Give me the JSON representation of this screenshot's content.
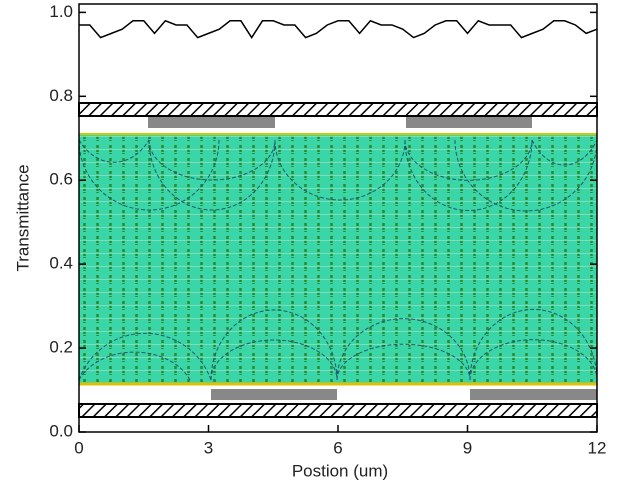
{
  "chart_data": {
    "type": "line",
    "x_label": "Postion (um)",
    "y_label": "Transmittance",
    "x": [
      0,
      0.25,
      0.5,
      0.75,
      1,
      1.25,
      1.5,
      1.75,
      2,
      2.25,
      2.5,
      2.75,
      3,
      3.25,
      3.5,
      3.75,
      4,
      4.25,
      4.5,
      4.75,
      5,
      5.25,
      5.5,
      5.75,
      6,
      6.25,
      6.5,
      6.75,
      7,
      7.25,
      7.5,
      7.75,
      8,
      8.25,
      8.5,
      8.75,
      9,
      9.25,
      9.5,
      9.75,
      10,
      10.25,
      10.5,
      10.75,
      11,
      11.25,
      11.5,
      11.75,
      12
    ],
    "values": [
      0.97,
      0.97,
      0.94,
      0.95,
      0.96,
      0.98,
      0.98,
      0.95,
      0.98,
      0.97,
      0.97,
      0.94,
      0.95,
      0.96,
      0.98,
      0.98,
      0.94,
      0.98,
      0.98,
      0.97,
      0.97,
      0.94,
      0.95,
      0.97,
      0.98,
      0.98,
      0.95,
      0.98,
      0.97,
      0.97,
      0.96,
      0.94,
      0.95,
      0.97,
      0.98,
      0.98,
      0.95,
      0.98,
      0.97,
      0.97,
      0.97,
      0.94,
      0.95,
      0.96,
      0.98,
      0.98,
      0.97,
      0.95,
      0.96
    ],
    "color": "#000000",
    "xlim": [
      0,
      12
    ],
    "xticks": [
      0,
      3,
      6,
      9,
      12
    ],
    "ylim": [
      0,
      1.02
    ],
    "yticks": [
      {
        "value": 0,
        "label": "0.0"
      },
      0.2,
      0.4,
      0.6,
      0.8,
      {
        "value": 1,
        "label": "1.0"
      }
    ]
  }
}
